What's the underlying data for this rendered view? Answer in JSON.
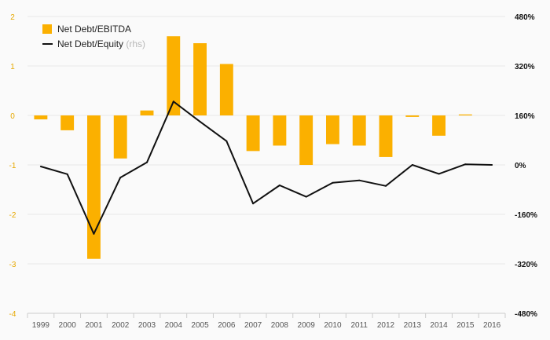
{
  "chart_data": {
    "type": "bar",
    "categories": [
      "1999",
      "2000",
      "2001",
      "2002",
      "2003",
      "2004",
      "2005",
      "2006",
      "2007",
      "2008",
      "2009",
      "2010",
      "2011",
      "2012",
      "2013",
      "2014",
      "2015",
      "2016"
    ],
    "series": [
      {
        "name": "Net Debt/EBITDA",
        "type": "bar",
        "axis": "left",
        "color": "#fbb000",
        "values": [
          -0.08,
          -0.3,
          -2.9,
          -0.87,
          0.1,
          1.6,
          1.46,
          1.04,
          -0.72,
          -0.61,
          -1.0,
          -0.58,
          -0.61,
          -0.84,
          -0.03,
          -0.41,
          0.02,
          null
        ]
      },
      {
        "name": "Net Debt/Equity",
        "name_suffix": "(rhs)",
        "type": "line",
        "axis": "right",
        "color": "#111111",
        "values": [
          -5,
          -30,
          -223,
          -41,
          8,
          205,
          140,
          77,
          -125,
          -66,
          -103,
          -58,
          -50,
          -68,
          0,
          -29,
          2,
          0
        ]
      }
    ],
    "left_axis": {
      "min": -4,
      "max": 2,
      "ticks": [
        2,
        1,
        0,
        -1,
        -2,
        -3,
        -4
      ],
      "tick_labels": [
        "2",
        "1",
        "0",
        "-1",
        "-2",
        "-3",
        "-4"
      ]
    },
    "right_axis": {
      "min": -480,
      "max": 480,
      "ticks": [
        480,
        320,
        160,
        0,
        -160,
        -320,
        -480
      ],
      "tick_labels": [
        "480%",
        "320%",
        "160%",
        "0%",
        "-160%",
        "-320%",
        "-480%"
      ]
    },
    "legend": {
      "position": "top-left",
      "items": [
        {
          "label": "Net Debt/EBITDA",
          "suffix": ""
        },
        {
          "label": "Net Debt/Equity",
          "suffix": "(rhs)"
        }
      ]
    },
    "grid": true,
    "title": "",
    "xlabel": "",
    "ylabel": ""
  }
}
